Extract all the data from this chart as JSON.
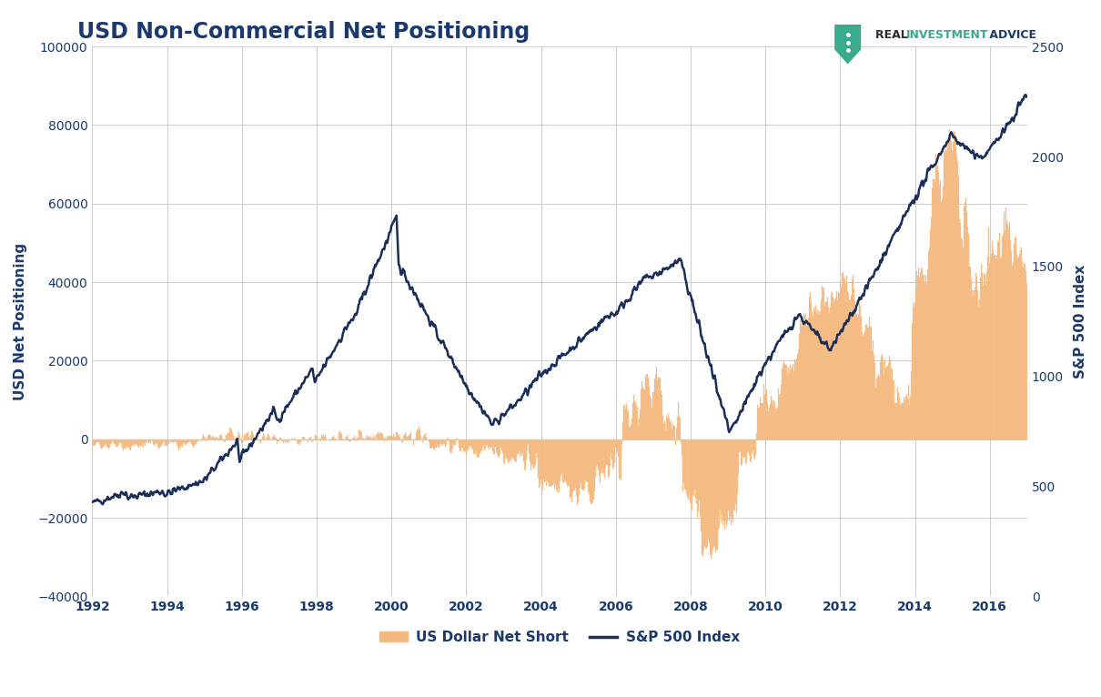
{
  "title": "USD Non-Commercial Net Positioning",
  "ylabel_left": "USD Net Positioning",
  "ylabel_right": "S&P 500 Index",
  "ylim_left": [
    -40000,
    100000
  ],
  "ylim_right": [
    0,
    2500
  ],
  "background_color": "#ffffff",
  "plot_bg_color": "#ffffff",
  "grid_color": "#cccccc",
  "bar_color": "#f5b97f",
  "bar_edge_color": "#f5b97f",
  "line_color": "#1a2e5a",
  "title_color": "#1a3a6e",
  "axis_label_color": "#1a3a6e",
  "tick_color": "#1a3a6e",
  "legend_bar_label": "US Dollar Net Short",
  "legend_line_label": "S&P 500 Index",
  "logo_real": "REAL ",
  "logo_investment": "INVESTMENT",
  "logo_advice": " ADVICE",
  "logo_real_color": "#2c2c2c",
  "logo_investment_color": "#3aaa8c",
  "logo_advice_color": "#1a3a6e",
  "shield_color": "#3aaa8c",
  "x_tick_years": [
    1992,
    1994,
    1996,
    1998,
    2000,
    2002,
    2004,
    2006,
    2008,
    2010,
    2012,
    2014,
    2016
  ]
}
